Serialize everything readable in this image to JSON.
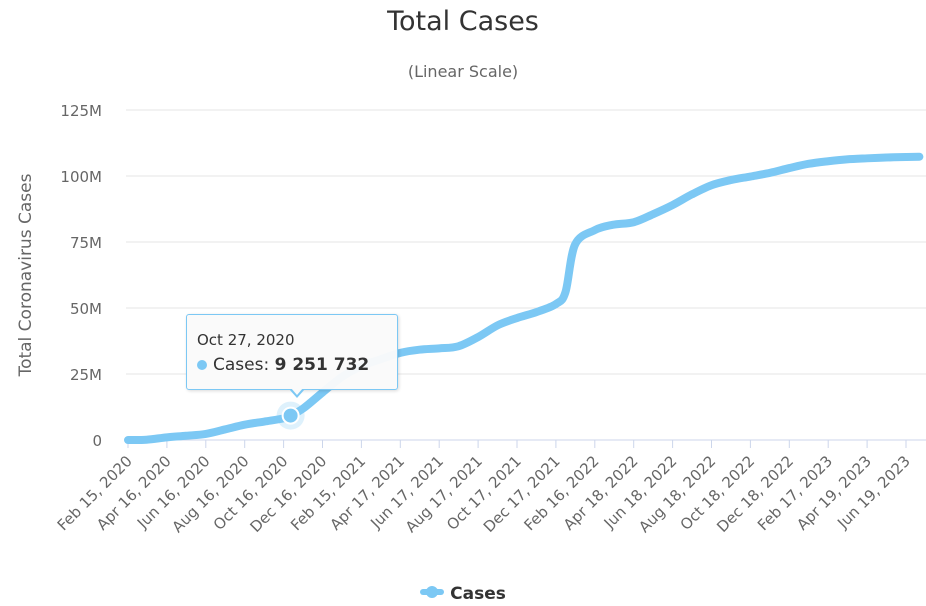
{
  "chart_data": {
    "type": "line",
    "title": "Total Cases",
    "subtitle": "(Linear Scale)",
    "ylabel": "Total Coronavirus Cases",
    "xlabel": "",
    "ylim": [
      0,
      125000000
    ],
    "y_ticks": [
      "0",
      "25M",
      "50M",
      "75M",
      "100M",
      "125M"
    ],
    "y_tick_values": [
      0,
      25000000,
      50000000,
      75000000,
      100000000,
      125000000
    ],
    "x_ticks": [
      "Feb 15, 2020",
      "Apr 16, 2020",
      "Jun 16, 2020",
      "Aug 16, 2020",
      "Oct 16, 2020",
      "Dec 16, 2020",
      "Feb 15, 2021",
      "Apr 17, 2021",
      "Jun 17, 2021",
      "Aug 17, 2021",
      "Oct 17, 2021",
      "Dec 17, 2021",
      "Feb 16, 2022",
      "Apr 18, 2022",
      "Jun 18, 2022",
      "Aug 18, 2022",
      "Oct 18, 2022",
      "Dec 18, 2022",
      "Feb 17, 2023",
      "Apr 19, 2023",
      "Jun 19, 2023"
    ],
    "grid": true,
    "legend": "bottom-center",
    "color": "#7cc8f4",
    "series": [
      {
        "name": "Cases",
        "x": [
          "Feb 15, 2020",
          "Mar 15, 2020",
          "Apr 16, 2020",
          "May 16, 2020",
          "Jun 16, 2020",
          "Jul 16, 2020",
          "Aug 16, 2020",
          "Sep 16, 2020",
          "Oct 16, 2020",
          "Oct 27, 2020",
          "Nov 16, 2020",
          "Dec 16, 2020",
          "Jan 16, 2021",
          "Feb 15, 2021",
          "Mar 16, 2021",
          "Apr 17, 2021",
          "May 17, 2021",
          "Jun 17, 2021",
          "Jul 17, 2021",
          "Aug 17, 2021",
          "Sep 17, 2021",
          "Oct 17, 2021",
          "Nov 17, 2021",
          "Dec 17, 2021",
          "Jan 1, 2022",
          "Jan 16, 2022",
          "Feb 16, 2022",
          "Mar 16, 2022",
          "Apr 18, 2022",
          "May 18, 2022",
          "Jun 18, 2022",
          "Jul 18, 2022",
          "Aug 18, 2022",
          "Sep 18, 2022",
          "Oct 18, 2022",
          "Nov 18, 2022",
          "Dec 18, 2022",
          "Jan 17, 2023",
          "Feb 17, 2023",
          "Mar 18, 2023",
          "Apr 19, 2023",
          "May 19, 2023",
          "Jun 19, 2023",
          "Jul 10, 2023"
        ],
        "values": [
          0,
          100000,
          1000000,
          1600000,
          2300000,
          4000000,
          5800000,
          7000000,
          8200000,
          9251732,
          12000000,
          18000000,
          24000000,
          28000000,
          30500000,
          33000000,
          34200000,
          34700000,
          35500000,
          39000000,
          43500000,
          46200000,
          48500000,
          51500000,
          56000000,
          74000000,
          79500000,
          81500000,
          82500000,
          85500000,
          89000000,
          93000000,
          96500000,
          98500000,
          99800000,
          101200000,
          103000000,
          104600000,
          105600000,
          106300000,
          106700000,
          107000000,
          107200000,
          107300000
        ]
      }
    ],
    "tooltip": {
      "date": "Oct 27, 2020",
      "label": "Cases:",
      "value": "9 251 732",
      "x": "Oct 27, 2020",
      "y": 9251732
    }
  }
}
